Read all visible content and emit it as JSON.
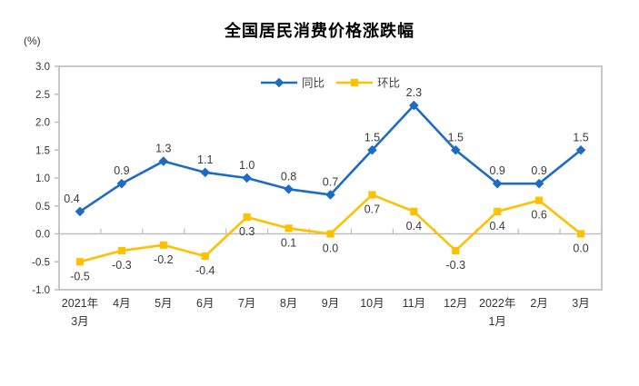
{
  "chart_data": {
    "type": "line",
    "title": "全国居民消费价格涨跌幅",
    "ylabel": "(%)",
    "xlabel": "",
    "ylim": [
      -1.0,
      3.0
    ],
    "ytick_step": 0.5,
    "ytick_labels": [
      "3.0",
      "2.5",
      "2.0",
      "1.5",
      "1.0",
      "0.5",
      "0.0",
      "-0.5",
      "-1.0"
    ],
    "grid": false,
    "legend_position": "top-center-inside",
    "categories": [
      [
        "2021年",
        "3月"
      ],
      [
        "4月"
      ],
      [
        "5月"
      ],
      [
        "6月"
      ],
      [
        "7月"
      ],
      [
        "8月"
      ],
      [
        "9月"
      ],
      [
        "10月"
      ],
      [
        "11月"
      ],
      [
        "12月"
      ],
      [
        "2022年",
        "1月"
      ],
      [
        "2月"
      ],
      [
        "3月"
      ]
    ],
    "series": [
      {
        "name": "同比",
        "key": "yoy",
        "color": "#1E6BC4",
        "marker": "diamond",
        "values": [
          0.4,
          0.9,
          1.3,
          1.1,
          1.0,
          0.8,
          0.7,
          1.5,
          2.3,
          1.5,
          0.9,
          0.9,
          1.5
        ],
        "label_side": "above"
      },
      {
        "name": "环比",
        "key": "mom",
        "color": "#FFC000",
        "marker": "square",
        "values": [
          -0.5,
          -0.3,
          -0.2,
          -0.4,
          0.3,
          0.1,
          0.0,
          0.7,
          0.4,
          -0.3,
          0.4,
          0.6,
          0.0
        ],
        "label_side": "below"
      }
    ],
    "colors": {
      "plot_border": "#C9C9C9",
      "zero_line": "#BFBFBF",
      "tick": "#BFBFBF",
      "axis_text": "#333333",
      "data_label_text": "#3A3A3A",
      "title_text": "#000000",
      "legend_text": "#444444",
      "background": "#FFFFFF"
    }
  }
}
